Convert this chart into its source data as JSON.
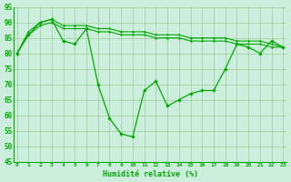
{
  "xlabel": "Humidité relative (%)",
  "x": [
    0,
    1,
    2,
    3,
    4,
    5,
    6,
    7,
    8,
    9,
    10,
    11,
    12,
    13,
    14,
    15,
    16,
    17,
    18,
    19,
    20,
    21,
    22,
    23
  ],
  "y_main": [
    80,
    86,
    90,
    91,
    84,
    83,
    88,
    70,
    59,
    54,
    53,
    68,
    71,
    63,
    65,
    67,
    68,
    68,
    75,
    83,
    82,
    80,
    84,
    82
  ],
  "y_upper": [
    80,
    87,
    90,
    91,
    89,
    89,
    89,
    88,
    88,
    87,
    87,
    87,
    86,
    86,
    86,
    85,
    85,
    85,
    85,
    84,
    84,
    84,
    83,
    82
  ],
  "y_lower": [
    80,
    86,
    89,
    90,
    88,
    88,
    88,
    87,
    87,
    86,
    86,
    86,
    85,
    85,
    85,
    84,
    84,
    84,
    84,
    83,
    83,
    83,
    82,
    82
  ],
  "ylim": [
    45,
    95
  ],
  "yticks": [
    45,
    50,
    55,
    60,
    65,
    70,
    75,
    80,
    85,
    90,
    95
  ],
  "line_color": "#00aa00",
  "bg_color": "#cceedc",
  "grid_color": "#99cc99"
}
